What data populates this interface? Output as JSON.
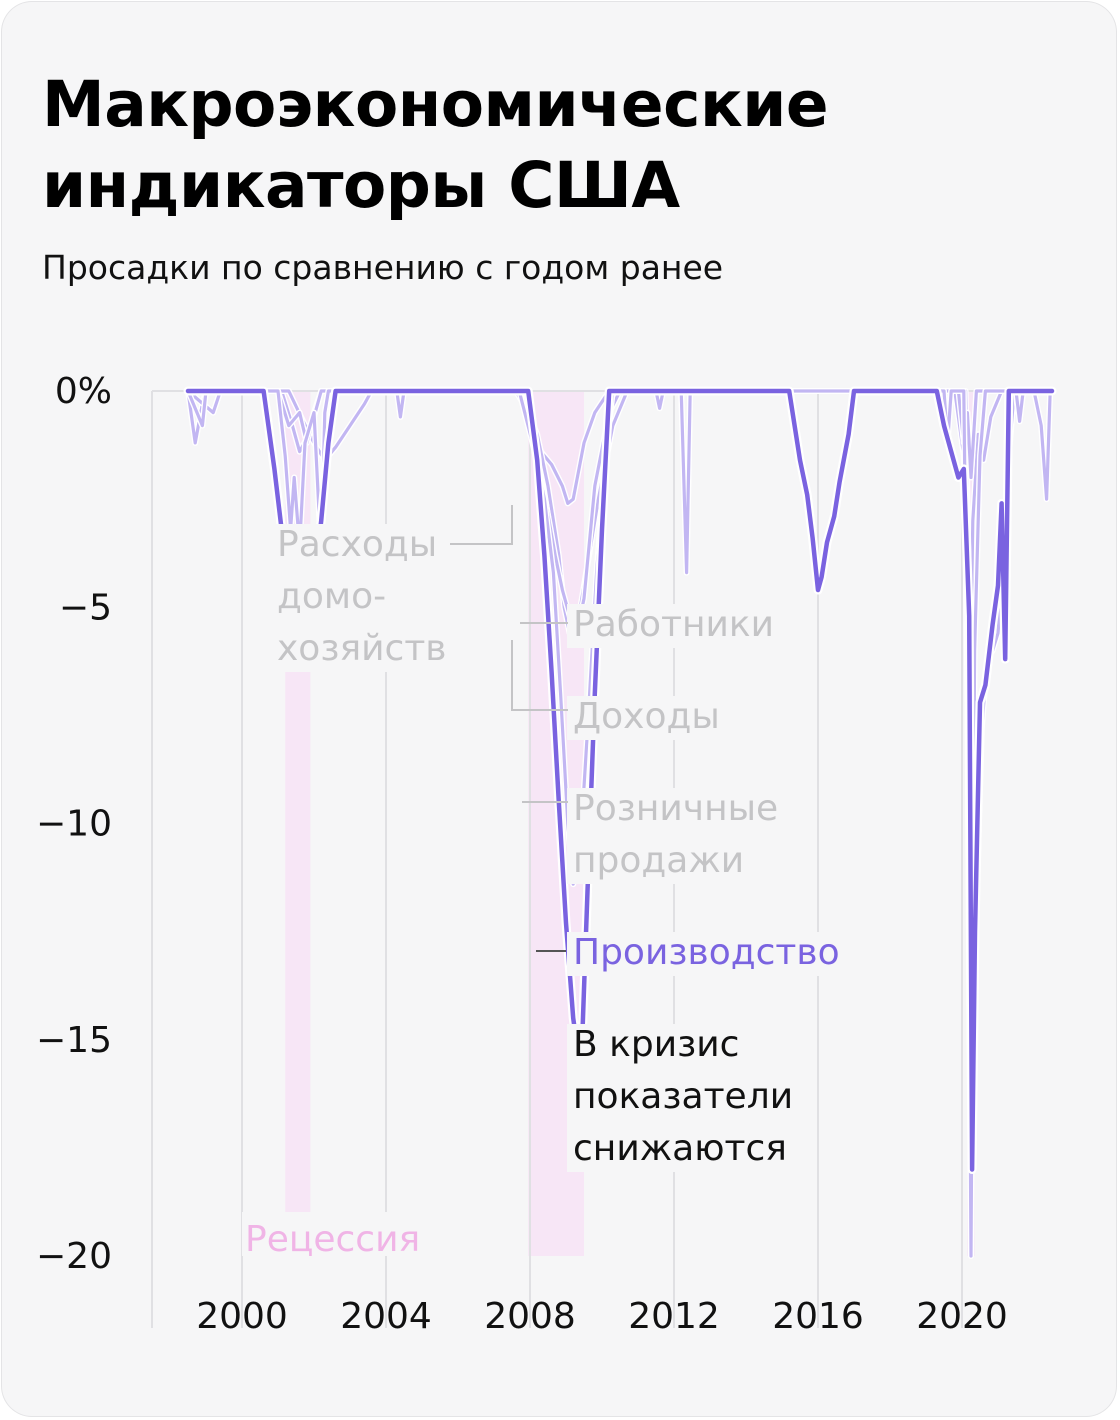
{
  "header": {
    "title_line1": "Макроэкономические",
    "title_line2": "индикаторы США",
    "subtitle": "Просадки по сравнению с годом ранее"
  },
  "colors": {
    "background": "#f6f6f7",
    "production": "#7a63e0",
    "other_series": "#c2b6f2",
    "recession_fill": "#f7e6f6",
    "recession_text": "#f0b4e6",
    "annotation_gray": "#c4c4c6",
    "grid": "#e0e0e3"
  },
  "chart_data": {
    "type": "line",
    "xlim": [
      1997.5,
      2022.5
    ],
    "ylim": [
      -20,
      0
    ],
    "y_ticks": [
      {
        "value": 0,
        "label": "0%"
      },
      {
        "value": -5,
        "label": "−5"
      },
      {
        "value": -10,
        "label": "−10"
      },
      {
        "value": -15,
        "label": "−15"
      },
      {
        "value": -20,
        "label": "−20"
      }
    ],
    "x_ticks": [
      {
        "value": 2000,
        "label": "2000"
      },
      {
        "value": 2004,
        "label": "2004"
      },
      {
        "value": 2008,
        "label": "2008"
      },
      {
        "value": 2012,
        "label": "2012"
      },
      {
        "value": 2016,
        "label": "2016"
      },
      {
        "value": 2020,
        "label": "2020"
      }
    ],
    "recessions": [
      {
        "start": 2001.2,
        "end": 2001.9
      },
      {
        "start": 2007.95,
        "end": 2009.5
      },
      {
        "start": 2020.15,
        "end": 2020.35
      }
    ],
    "recession_label": "Рецессия",
    "series": [
      {
        "name": "Расходы домохозяйств",
        "label": "Расходы домо- хозяйств",
        "label_lines": [
          "Расходы",
          "домо-",
          "хозяйств"
        ],
        "points": [
          [
            1998.5,
            0
          ],
          [
            1998.7,
            -1.2
          ],
          [
            1998.9,
            -0.3
          ],
          [
            1999.0,
            0
          ],
          [
            2001.1,
            0
          ],
          [
            2001.4,
            -0.8
          ],
          [
            2001.6,
            -1.4
          ],
          [
            2001.8,
            -1.1
          ],
          [
            2002.0,
            -0.5
          ],
          [
            2002.2,
            0
          ],
          [
            2007.6,
            0
          ],
          [
            2007.9,
            -0.4
          ],
          [
            2008.1,
            -0.9
          ],
          [
            2008.3,
            -1.4
          ],
          [
            2008.6,
            -1.7
          ],
          [
            2008.9,
            -2.2
          ],
          [
            2009.05,
            -2.6
          ],
          [
            2009.2,
            -2.5
          ],
          [
            2009.5,
            -1.2
          ],
          [
            2009.8,
            -0.5
          ],
          [
            2010.2,
            0
          ],
          [
            2019.8,
            0
          ],
          [
            2020.05,
            -1.5
          ],
          [
            2020.2,
            -8.5
          ],
          [
            2020.3,
            -3.0
          ],
          [
            2020.45,
            -1.0
          ],
          [
            2020.6,
            -1.6
          ],
          [
            2020.8,
            -0.6
          ],
          [
            2021.1,
            0
          ],
          [
            2022.5,
            0
          ]
        ]
      },
      {
        "name": "Работники",
        "points": [
          [
            1998.5,
            0
          ],
          [
            1999.2,
            -0.5
          ],
          [
            1999.4,
            0
          ],
          [
            2001.3,
            0
          ],
          [
            2001.7,
            -0.7
          ],
          [
            2002.0,
            -1.2
          ],
          [
            2002.3,
            -1.6
          ],
          [
            2002.6,
            -1.3
          ],
          [
            2003.0,
            -0.8
          ],
          [
            2003.4,
            -0.3
          ],
          [
            2003.6,
            0
          ],
          [
            2007.7,
            0
          ],
          [
            2008.2,
            -1.0
          ],
          [
            2008.5,
            -2.2
          ],
          [
            2008.8,
            -3.8
          ],
          [
            2008.95,
            -5.0
          ],
          [
            2009.1,
            -5.6
          ],
          [
            2009.2,
            -5.3
          ],
          [
            2009.4,
            -5.0
          ],
          [
            2009.6,
            -4.0
          ],
          [
            2009.9,
            -2.5
          ],
          [
            2010.3,
            -0.8
          ],
          [
            2010.7,
            0
          ],
          [
            2020.1,
            0
          ],
          [
            2020.2,
            -5.0
          ],
          [
            2020.3,
            -14.2
          ],
          [
            2020.4,
            -12.0
          ],
          [
            2020.55,
            -7.8
          ],
          [
            2020.7,
            -6.2
          ],
          [
            2020.85,
            -6.0
          ],
          [
            2021.0,
            -5.6
          ],
          [
            2021.15,
            -4.0
          ],
          [
            2021.3,
            -1.5
          ],
          [
            2021.45,
            0
          ],
          [
            2022.5,
            0
          ]
        ]
      },
      {
        "name": "Доходы",
        "points": [
          [
            1998.5,
            0
          ],
          [
            2001.0,
            0
          ],
          [
            2001.3,
            -0.8
          ],
          [
            2001.6,
            -0.5
          ],
          [
            2001.8,
            -1.2
          ],
          [
            2002.0,
            -0.6
          ],
          [
            2002.2,
            0
          ],
          [
            2007.9,
            0
          ],
          [
            2008.1,
            -1.2
          ],
          [
            2008.4,
            -2.4
          ],
          [
            2008.7,
            -3.8
          ],
          [
            2008.9,
            -4.6
          ],
          [
            2009.1,
            -5.2
          ],
          [
            2009.25,
            -5.8
          ],
          [
            2009.5,
            -4.8
          ],
          [
            2009.8,
            -2.2
          ],
          [
            2010.2,
            -0.5
          ],
          [
            2010.5,
            0
          ],
          [
            2019.9,
            0
          ],
          [
            2020.05,
            -1.2
          ],
          [
            2020.15,
            -0.5
          ],
          [
            2020.25,
            -2.0
          ],
          [
            2020.4,
            0
          ],
          [
            2021.5,
            0
          ],
          [
            2021.55,
            -0.5
          ],
          [
            2021.6,
            0
          ],
          [
            2022.5,
            0
          ]
        ]
      },
      {
        "name": "Розничные продажи",
        "label": "Розничные продажи",
        "label_lines": [
          "Розничные",
          "продажи"
        ],
        "points": [
          [
            1998.5,
            0
          ],
          [
            1998.9,
            -0.8
          ],
          [
            1999.0,
            0
          ],
          [
            2001.0,
            0
          ],
          [
            2001.2,
            -1.5
          ],
          [
            2001.35,
            -3.2
          ],
          [
            2001.45,
            -2.0
          ],
          [
            2001.6,
            -3.6
          ],
          [
            2001.75,
            -1.2
          ],
          [
            2002.0,
            -0.5
          ],
          [
            2002.2,
            -3.8
          ],
          [
            2002.3,
            -0.5
          ],
          [
            2002.4,
            0
          ],
          [
            2004.3,
            0
          ],
          [
            2004.4,
            -0.6
          ],
          [
            2004.5,
            0
          ],
          [
            2007.7,
            0
          ],
          [
            2008.1,
            -1.3
          ],
          [
            2008.4,
            -2.5
          ],
          [
            2008.65,
            -4.2
          ],
          [
            2008.85,
            -7.0
          ],
          [
            2009.05,
            -10.0
          ],
          [
            2009.2,
            -11.4
          ],
          [
            2009.4,
            -10.5
          ],
          [
            2009.6,
            -7.8
          ],
          [
            2009.85,
            -4.2
          ],
          [
            2010.1,
            -1.5
          ],
          [
            2010.3,
            0
          ],
          [
            2011.5,
            0
          ],
          [
            2011.6,
            -0.4
          ],
          [
            2011.7,
            0
          ],
          [
            2012.2,
            0
          ],
          [
            2012.35,
            -4.2
          ],
          [
            2012.45,
            0
          ],
          [
            2019.5,
            0
          ],
          [
            2019.6,
            -1.2
          ],
          [
            2019.7,
            0
          ],
          [
            2020.05,
            0
          ],
          [
            2020.15,
            -7.0
          ],
          [
            2020.25,
            -20.0
          ],
          [
            2020.35,
            -6.0
          ],
          [
            2020.5,
            -1.5
          ],
          [
            2020.65,
            0
          ],
          [
            2021.5,
            0
          ],
          [
            2021.6,
            -0.7
          ],
          [
            2021.7,
            0
          ],
          [
            2022.0,
            0
          ],
          [
            2022.2,
            -0.8
          ],
          [
            2022.35,
            -2.5
          ],
          [
            2022.45,
            0
          ],
          [
            2022.5,
            0
          ]
        ]
      },
      {
        "name": "Производство",
        "label": "Производство",
        "points": [
          [
            1998.5,
            0
          ],
          [
            2000.6,
            0
          ],
          [
            2000.9,
            -1.8
          ],
          [
            2001.1,
            -3.2
          ],
          [
            2001.3,
            -4.0
          ],
          [
            2001.5,
            -4.3
          ],
          [
            2001.65,
            -5.0
          ],
          [
            2001.8,
            -5.2
          ],
          [
            2002.0,
            -4.5
          ],
          [
            2002.2,
            -3.0
          ],
          [
            2002.4,
            -1.2
          ],
          [
            2002.6,
            0
          ],
          [
            2007.95,
            0
          ],
          [
            2008.2,
            -1.6
          ],
          [
            2008.4,
            -3.8
          ],
          [
            2008.6,
            -6.5
          ],
          [
            2008.8,
            -9.5
          ],
          [
            2009.0,
            -12.3
          ],
          [
            2009.2,
            -14.5
          ],
          [
            2009.35,
            -15.4
          ],
          [
            2009.45,
            -15.0
          ],
          [
            2009.6,
            -11.5
          ],
          [
            2009.8,
            -7.0
          ],
          [
            2010.0,
            -3.2
          ],
          [
            2010.2,
            0
          ],
          [
            2015.2,
            0
          ],
          [
            2015.5,
            -1.6
          ],
          [
            2015.7,
            -2.4
          ],
          [
            2015.85,
            -3.4
          ],
          [
            2016.0,
            -4.6
          ],
          [
            2016.1,
            -4.3
          ],
          [
            2016.25,
            -3.5
          ],
          [
            2016.45,
            -2.9
          ],
          [
            2016.6,
            -2.1
          ],
          [
            2016.85,
            -1.0
          ],
          [
            2017.0,
            0
          ],
          [
            2019.3,
            0
          ],
          [
            2019.5,
            -0.8
          ],
          [
            2019.7,
            -1.4
          ],
          [
            2019.9,
            -2.0
          ],
          [
            2020.05,
            -1.8
          ],
          [
            2020.2,
            -5.2
          ],
          [
            2020.28,
            -18.0
          ],
          [
            2020.36,
            -12.5
          ],
          [
            2020.5,
            -7.2
          ],
          [
            2020.65,
            -6.8
          ],
          [
            2020.85,
            -5.4
          ],
          [
            2021.0,
            -4.5
          ],
          [
            2021.1,
            -2.6
          ],
          [
            2021.2,
            -6.2
          ],
          [
            2021.3,
            0
          ],
          [
            2022.5,
            0
          ]
        ]
      }
    ],
    "annotation": "В кризис показатели снижаются",
    "annotation_lines": [
      "В кризис",
      "показатели",
      "снижаются"
    ]
  }
}
